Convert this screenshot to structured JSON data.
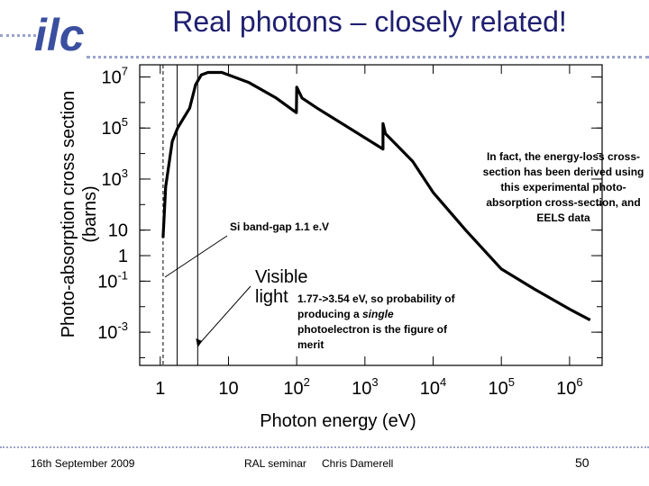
{
  "slide": {
    "title": "Real photons – closely related!",
    "logo_text": "ilc"
  },
  "annotations": {
    "right_note": "In fact, the energy-loss cross-section has been derived using this experimental photo-absorption cross-section, and EELS data",
    "band_gap": "Si band-gap 1.1 e.V",
    "visible_light_label_line1": "Visible",
    "visible_light_label_line2": "light",
    "visible_range_prefix": "1.77->3.54 eV, so probability of producing a ",
    "visible_range_emph": "single",
    "visible_range_suffix": " photoelectron is the figure of merit"
  },
  "footer": {
    "date": "16th September 2009",
    "venue": "RAL seminar",
    "author": "Chris Damerell",
    "page": "50"
  },
  "colors": {
    "title": "#1f1f70",
    "logo": "#3b4fa0",
    "dots": "#9aa3cc"
  },
  "chart_data": {
    "type": "line",
    "xlabel": "Photon energy (eV)",
    "ylabel": "Photo-absorption cross section (barns)",
    "xscale": "log",
    "yscale": "log",
    "xlim": [
      0.5,
      3000000
    ],
    "ylim": [
      5e-05,
      30000000
    ],
    "x_ticks": [
      {
        "value": 1,
        "label": "1"
      },
      {
        "value": 10,
        "label": "10"
      },
      {
        "value": 100,
        "label": "10",
        "sup": "2"
      },
      {
        "value": 1000,
        "label": "10",
        "sup": "3"
      },
      {
        "value": 10000,
        "label": "10",
        "sup": "4"
      },
      {
        "value": 100000,
        "label": "10",
        "sup": "5"
      },
      {
        "value": 1000000,
        "label": "10",
        "sup": "6"
      }
    ],
    "y_ticks": [
      {
        "value": 0.001,
        "label": "10",
        "sup": "-3"
      },
      {
        "value": 0.1,
        "label": "10",
        "sup": "-1"
      },
      {
        "value": 1,
        "label": "1"
      },
      {
        "value": 10,
        "label": "10"
      },
      {
        "value": 1000,
        "label": "10",
        "sup": "3"
      },
      {
        "value": 100000,
        "label": "10",
        "sup": "5"
      },
      {
        "value": 10000000,
        "label": "10",
        "sup": "7"
      }
    ],
    "vertical_lines": [
      1.1,
      1.77,
      3.54
    ],
    "series": [
      {
        "x": [
          1.1,
          1.2,
          1.5,
          1.8,
          2.1,
          2.7,
          3.3,
          4.0,
          5.0,
          8.0,
          20,
          50,
          99,
          100,
          120,
          200,
          1839,
          1840,
          2000,
          5000,
          10000,
          30000,
          100000,
          300000,
          1000000,
          2000000
        ],
        "y": [
          5,
          500,
          30000,
          100000,
          200000,
          600000,
          5000000,
          12000000,
          15000000,
          15000000,
          6000000,
          1500000,
          400000,
          4000000,
          1500000,
          600000,
          15000,
          150000,
          60000,
          5000,
          300,
          10,
          0.3,
          0.05,
          0.008,
          0.003
        ]
      }
    ]
  }
}
